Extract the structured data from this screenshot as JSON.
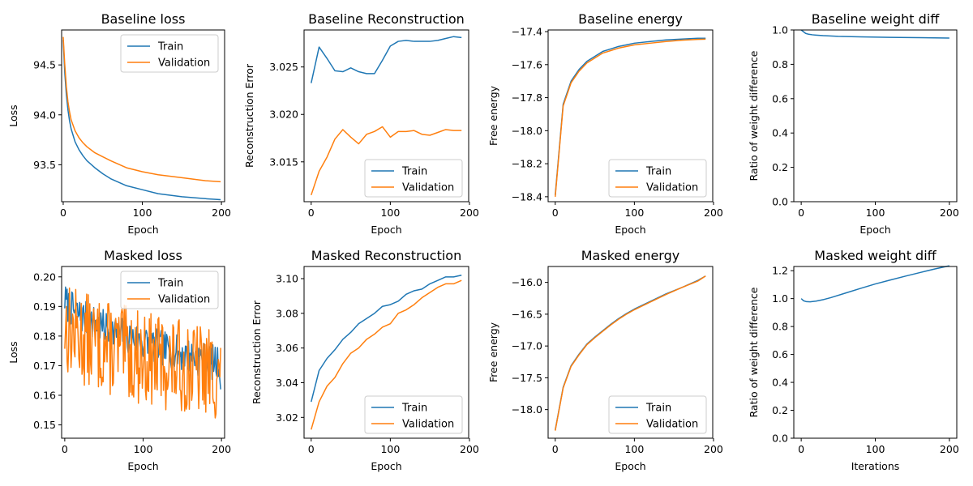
{
  "colors": {
    "train": "#1f77b4",
    "validation": "#ff7f0e"
  },
  "chart_data": [
    {
      "type": "line",
      "title": "Baseline loss",
      "xlabel": "Epoch",
      "ylabel": "Loss",
      "xlim": [
        -2,
        204
      ],
      "ylim": [
        93.13,
        94.85
      ],
      "xticks": [
        0,
        100,
        200
      ],
      "yticks": [
        93.5,
        94.0,
        94.5
      ],
      "ytick_labels": [
        "93.5",
        "94.0",
        "94.5"
      ],
      "legend": "top-right",
      "series": [
        {
          "name": "Train",
          "style": "train",
          "x": [
            0,
            2,
            4,
            6,
            8,
            10,
            15,
            20,
            25,
            30,
            40,
            50,
            60,
            80,
            100,
            120,
            150,
            180,
            199
          ],
          "y": [
            94.75,
            94.42,
            94.2,
            94.05,
            93.94,
            93.86,
            93.73,
            93.65,
            93.59,
            93.54,
            93.47,
            93.41,
            93.36,
            93.29,
            93.25,
            93.21,
            93.18,
            93.16,
            93.15
          ]
        },
        {
          "name": "Validation",
          "style": "validation",
          "x": [
            0,
            2,
            4,
            6,
            8,
            10,
            15,
            20,
            25,
            30,
            40,
            50,
            60,
            80,
            100,
            120,
            150,
            180,
            199
          ],
          "y": [
            94.78,
            94.5,
            94.28,
            94.13,
            94.03,
            93.95,
            93.84,
            93.77,
            93.72,
            93.68,
            93.62,
            93.58,
            93.54,
            93.47,
            93.43,
            93.4,
            93.37,
            93.34,
            93.33
          ]
        }
      ]
    },
    {
      "type": "line",
      "title": "Baseline Reconstruction",
      "xlabel": "Epoch",
      "ylabel": "Reconstruction Error",
      "xlim": [
        -9,
        199
      ],
      "ylim": [
        3.0108,
        3.0289
      ],
      "xticks": [
        0,
        100,
        200
      ],
      "yticks": [
        3.015,
        3.02,
        3.025
      ],
      "ytick_labels": [
        "3.015",
        "3.020",
        "3.025"
      ],
      "legend": "bottom-right",
      "series": [
        {
          "name": "Train",
          "style": "train",
          "x": [
            0,
            10,
            20,
            30,
            40,
            50,
            60,
            70,
            80,
            90,
            100,
            110,
            120,
            130,
            140,
            150,
            160,
            170,
            180,
            190
          ],
          "y": [
            3.0233,
            3.0271,
            3.0259,
            3.0246,
            3.0245,
            3.0249,
            3.0245,
            3.0243,
            3.0243,
            3.0257,
            3.0272,
            3.0277,
            3.0278,
            3.0277,
            3.0277,
            3.0277,
            3.0278,
            3.028,
            3.0282,
            3.0281
          ]
        },
        {
          "name": "Validation",
          "style": "validation",
          "x": [
            0,
            10,
            20,
            30,
            40,
            50,
            60,
            70,
            80,
            90,
            100,
            110,
            120,
            130,
            140,
            150,
            160,
            170,
            180,
            190
          ],
          "y": [
            3.0115,
            3.014,
            3.0155,
            3.0174,
            3.0184,
            3.0176,
            3.0169,
            3.0179,
            3.0182,
            3.0187,
            3.0176,
            3.0182,
            3.0182,
            3.0183,
            3.0179,
            3.0178,
            3.0181,
            3.0184,
            3.0183,
            3.0183
          ]
        }
      ]
    },
    {
      "type": "line",
      "title": "Baseline energy",
      "xlabel": "Epoch",
      "ylabel": "Free energy",
      "xlim": [
        -9,
        199
      ],
      "ylim": [
        -18.43,
        -17.39
      ],
      "xticks": [
        0,
        100,
        200
      ],
      "yticks": [
        -18.4,
        -18.2,
        -18.0,
        -17.8,
        -17.6,
        -17.4
      ],
      "ytick_labels": [
        "−18.4",
        "−18.2",
        "−18.0",
        "−17.8",
        "−17.6",
        "−17.4"
      ],
      "legend": "bottom-right",
      "series": [
        {
          "name": "Train",
          "style": "train",
          "x": [
            0,
            10,
            20,
            30,
            40,
            50,
            60,
            70,
            80,
            90,
            100,
            120,
            140,
            160,
            180,
            190
          ],
          "y": [
            -18.39,
            -17.84,
            -17.7,
            -17.63,
            -17.58,
            -17.55,
            -17.52,
            -17.505,
            -17.49,
            -17.48,
            -17.47,
            -17.46,
            -17.45,
            -17.445,
            -17.44,
            -17.44
          ]
        },
        {
          "name": "Validation",
          "style": "validation",
          "x": [
            0,
            10,
            20,
            30,
            40,
            50,
            60,
            70,
            80,
            90,
            100,
            120,
            140,
            160,
            180,
            190
          ],
          "y": [
            -18.4,
            -17.85,
            -17.71,
            -17.64,
            -17.59,
            -17.56,
            -17.53,
            -17.515,
            -17.5,
            -17.49,
            -17.48,
            -17.47,
            -17.46,
            -17.452,
            -17.447,
            -17.446
          ]
        }
      ]
    },
    {
      "type": "line",
      "title": "Baseline weight diff",
      "xlabel": "Epoch",
      "ylabel": "Ratio of weight difference",
      "xlim": [
        -10,
        210
      ],
      "ylim": [
        0.0,
        1.0
      ],
      "xticks": [
        0,
        100,
        200
      ],
      "yticks": [
        0.0,
        0.2,
        0.4,
        0.6,
        0.8,
        1.0
      ],
      "ytick_labels": [
        "0.0",
        "0.2",
        "0.4",
        "0.6",
        "0.8",
        "1.0"
      ],
      "legend": "none",
      "series": [
        {
          "style": "train",
          "x": [
            0,
            3,
            6,
            10,
            15,
            20,
            30,
            50,
            80,
            120,
            160,
            200
          ],
          "y": [
            1.0,
            0.99,
            0.98,
            0.975,
            0.972,
            0.97,
            0.967,
            0.963,
            0.96,
            0.957,
            0.955,
            0.953
          ]
        }
      ]
    },
    {
      "type": "line",
      "title": "Masked loss",
      "xlabel": "Epoch",
      "ylabel": "Loss",
      "xlim": [
        -4,
        204
      ],
      "ylim": [
        0.1455,
        0.2035
      ],
      "xticks": [
        0,
        100,
        200
      ],
      "yticks": [
        0.15,
        0.16,
        0.17,
        0.18,
        0.19,
        0.2
      ],
      "ytick_labels": [
        "0.15",
        "0.16",
        "0.17",
        "0.18",
        "0.19",
        "0.20"
      ],
      "legend": "top-right",
      "series": [
        {
          "name": "Train",
          "style": "train",
          "noise": {
            "start": 0.1925,
            "end": 0.1705,
            "amp": 0.006,
            "seed": 7,
            "n": 200,
            "last": 0.162
          }
        },
        {
          "name": "Validation",
          "style": "validation",
          "noise": {
            "start": 0.184,
            "end": 0.167,
            "amp": 0.016,
            "seed": 13,
            "n": 200,
            "last": 0.176
          }
        }
      ]
    },
    {
      "type": "line",
      "title": "Masked Reconstruction",
      "xlabel": "Epoch",
      "ylabel": "Reconstruction Error",
      "xlim": [
        -9,
        199
      ],
      "ylim": [
        3.008,
        3.107
      ],
      "xticks": [
        0,
        100,
        200
      ],
      "yticks": [
        3.02,
        3.04,
        3.06,
        3.08,
        3.1
      ],
      "ytick_labels": [
        "3.02",
        "3.04",
        "3.06",
        "3.08",
        "3.10"
      ],
      "legend": "bottom-right",
      "series": [
        {
          "name": "Train",
          "style": "train",
          "x": [
            0,
            10,
            20,
            30,
            40,
            50,
            60,
            70,
            80,
            90,
            100,
            110,
            120,
            130,
            140,
            150,
            160,
            170,
            180,
            190
          ],
          "y": [
            3.029,
            3.047,
            3.054,
            3.059,
            3.065,
            3.069,
            3.074,
            3.077,
            3.08,
            3.084,
            3.085,
            3.087,
            3.091,
            3.093,
            3.094,
            3.097,
            3.099,
            3.101,
            3.101,
            3.102
          ]
        },
        {
          "name": "Validation",
          "style": "validation",
          "x": [
            0,
            10,
            20,
            30,
            40,
            50,
            60,
            70,
            80,
            90,
            100,
            110,
            120,
            130,
            140,
            150,
            160,
            170,
            180,
            190
          ],
          "y": [
            3.013,
            3.029,
            3.038,
            3.043,
            3.051,
            3.057,
            3.06,
            3.065,
            3.068,
            3.072,
            3.074,
            3.08,
            3.082,
            3.085,
            3.089,
            3.092,
            3.095,
            3.097,
            3.097,
            3.099
          ]
        }
      ]
    },
    {
      "type": "line",
      "title": "Masked energy",
      "xlabel": "Epoch",
      "ylabel": "Free energy",
      "xlim": [
        -9,
        199
      ],
      "ylim": [
        -18.45,
        -15.75
      ],
      "xticks": [
        0,
        100,
        200
      ],
      "yticks": [
        -18.0,
        -17.5,
        -17.0,
        -16.5,
        -16.0
      ],
      "ytick_labels": [
        "−18.0",
        "−17.5",
        "−17.0",
        "−16.5",
        "−16.0"
      ],
      "legend": "bottom-right",
      "series": [
        {
          "name": "Train",
          "style": "train",
          "x": [
            0,
            10,
            20,
            30,
            40,
            50,
            60,
            70,
            80,
            90,
            100,
            120,
            140,
            160,
            180,
            190
          ],
          "y": [
            -18.32,
            -17.65,
            -17.31,
            -17.13,
            -16.97,
            -16.86,
            -16.76,
            -16.66,
            -16.57,
            -16.49,
            -16.42,
            -16.3,
            -16.18,
            -16.08,
            -15.97,
            -15.9
          ]
        },
        {
          "name": "Validation",
          "style": "validation",
          "x": [
            0,
            10,
            20,
            30,
            40,
            50,
            60,
            70,
            80,
            90,
            100,
            120,
            140,
            160,
            180,
            190
          ],
          "y": [
            -18.33,
            -17.66,
            -17.32,
            -17.14,
            -16.98,
            -16.87,
            -16.77,
            -16.67,
            -16.58,
            -16.5,
            -16.43,
            -16.31,
            -16.19,
            -16.08,
            -15.98,
            -15.9
          ]
        }
      ]
    },
    {
      "type": "line",
      "title": "Masked weight diff",
      "xlabel": "Iterations",
      "ylabel": "Ratio of weight difference",
      "xlim": [
        -10,
        210
      ],
      "ylim": [
        0.0,
        1.23
      ],
      "xticks": [
        0,
        100,
        200
      ],
      "yticks": [
        0.0,
        0.2,
        0.4,
        0.6,
        0.8,
        1.0,
        1.2
      ],
      "ytick_labels": [
        "0.0",
        "0.2",
        "0.4",
        "0.6",
        "0.8",
        "1.0",
        "1.2"
      ],
      "legend": "none",
      "series": [
        {
          "style": "train",
          "x": [
            0,
            3,
            7,
            12,
            20,
            30,
            40,
            60,
            80,
            100,
            120,
            140,
            160,
            180,
            200
          ],
          "y": [
            1.0,
            0.985,
            0.978,
            0.977,
            0.982,
            0.993,
            1.007,
            1.04,
            1.073,
            1.105,
            1.133,
            1.16,
            1.186,
            1.212,
            1.235
          ]
        }
      ]
    }
  ]
}
